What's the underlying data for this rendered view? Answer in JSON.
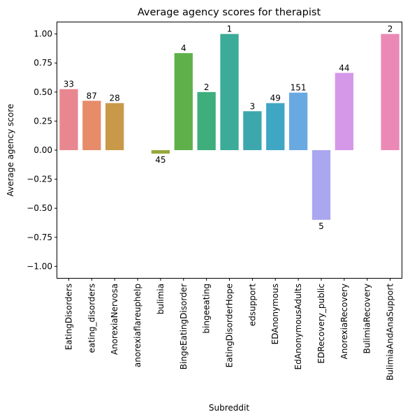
{
  "chart_data": {
    "type": "bar",
    "title": "Average agency scores for therapist",
    "xlabel": "Subreddit",
    "ylabel": "Average agency score",
    "ylim": [
      -1.1,
      1.1
    ],
    "yticks": [
      -1.0,
      -0.75,
      -0.5,
      -0.25,
      0.0,
      0.25,
      0.5,
      0.75,
      1.0
    ],
    "ytick_labels": [
      "−1.00",
      "−0.75",
      "−0.50",
      "−0.25",
      "0.00",
      "0.25",
      "0.50",
      "0.75",
      "1.00"
    ],
    "grid": false,
    "categories": [
      "EatingDisorders",
      "eating_disorders",
      "AnorexiaNervosa",
      "anorexiaflareuphelp",
      "bulimia",
      "BingeEatingDisorder",
      "bingeeating",
      "EatingDisorderHope",
      "edsupport",
      "EDAnonymous",
      "EdAnonymousAdults",
      "EDRecovery_public",
      "AnorexiaRecovery",
      "BulimiaRecovery",
      "BulimiaAndAnaSupport"
    ],
    "values": [
      0.525,
      0.425,
      0.405,
      null,
      -0.03,
      0.835,
      0.5,
      1.0,
      0.335,
      0.405,
      0.495,
      -0.6,
      0.665,
      null,
      1.0
    ],
    "bar_labels": [
      "33",
      "87",
      "28",
      "",
      "45",
      "4",
      "2",
      "1",
      "3",
      "49",
      "151",
      "5",
      "44",
      "",
      "2"
    ],
    "colors": [
      "#e8878f",
      "#e68c69",
      "#c9994a",
      "#b5a23e",
      "#97a83d",
      "#5fb04a",
      "#3eae7c",
      "#3dab99",
      "#3ca8ad",
      "#3fa7c4",
      "#68a9e2",
      "#aaa6ef",
      "#d598e8",
      "#e88dd3",
      "#eb89b6"
    ]
  }
}
